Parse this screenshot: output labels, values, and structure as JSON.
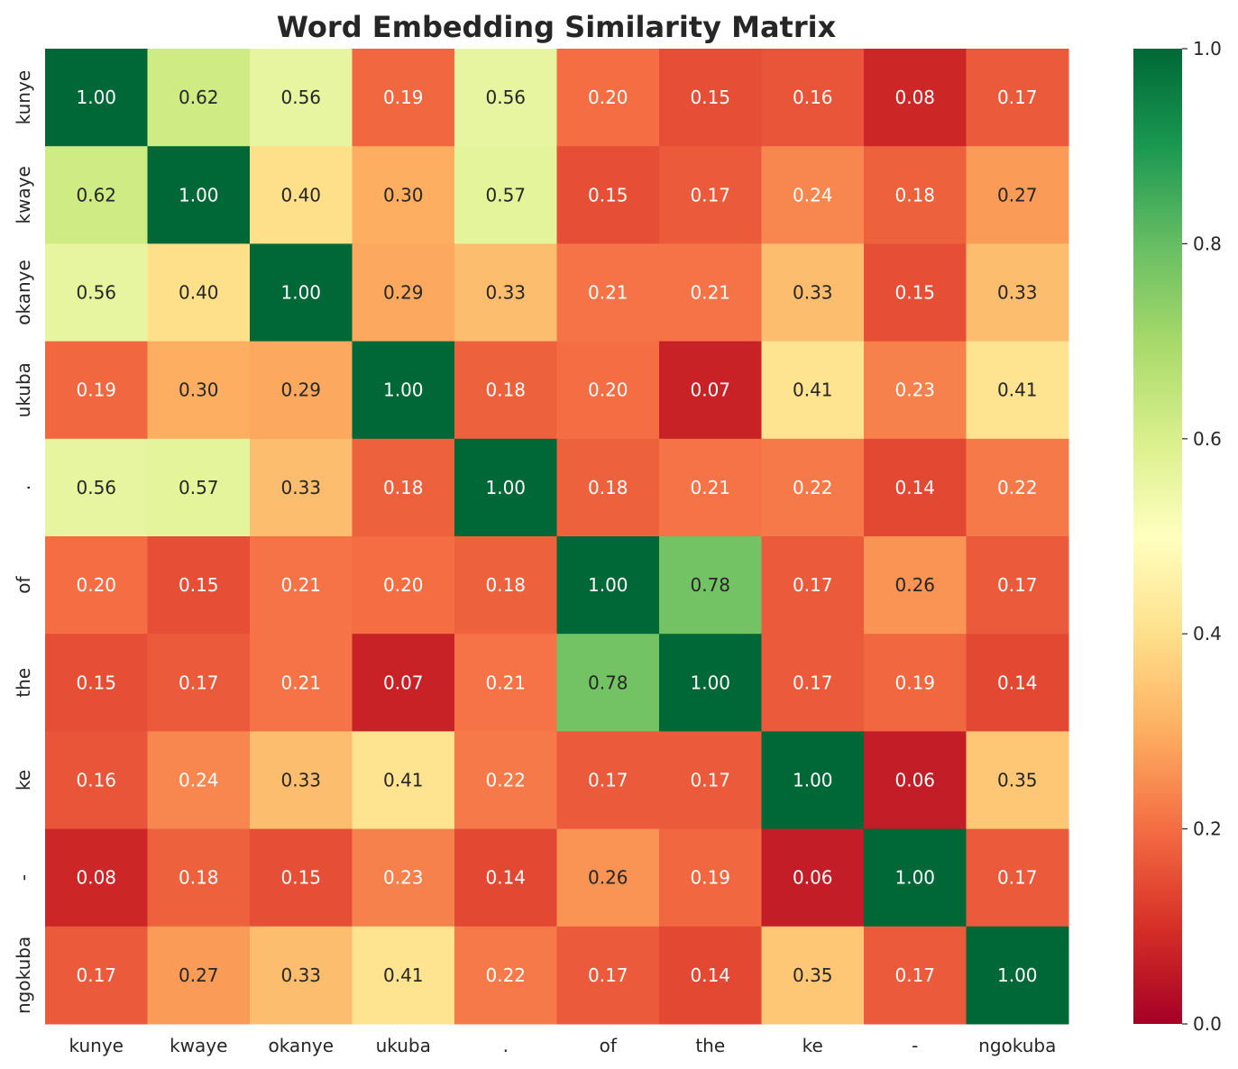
{
  "chart_data": {
    "type": "heatmap",
    "title": "Word Embedding Similarity Matrix",
    "x_labels": [
      "kunye",
      "kwaye",
      "okanye",
      "ukuba",
      ".",
      "of",
      "the",
      "ke",
      "-",
      "ngokuba"
    ],
    "y_labels": [
      "kunye",
      "kwaye",
      "okanye",
      "ukuba",
      ".",
      "of",
      "the",
      "ke",
      "-",
      "ngokuba"
    ],
    "values": [
      [
        1.0,
        0.62,
        0.56,
        0.19,
        0.56,
        0.2,
        0.15,
        0.16,
        0.08,
        0.17
      ],
      [
        0.62,
        1.0,
        0.4,
        0.3,
        0.57,
        0.15,
        0.17,
        0.24,
        0.18,
        0.27
      ],
      [
        0.56,
        0.4,
        1.0,
        0.29,
        0.33,
        0.21,
        0.21,
        0.33,
        0.15,
        0.33
      ],
      [
        0.19,
        0.3,
        0.29,
        1.0,
        0.18,
        0.2,
        0.07,
        0.41,
        0.23,
        0.41
      ],
      [
        0.56,
        0.57,
        0.33,
        0.18,
        1.0,
        0.18,
        0.21,
        0.22,
        0.14,
        0.22
      ],
      [
        0.2,
        0.15,
        0.21,
        0.2,
        0.18,
        1.0,
        0.78,
        0.17,
        0.26,
        0.17
      ],
      [
        0.15,
        0.17,
        0.21,
        0.07,
        0.21,
        0.78,
        1.0,
        0.17,
        0.19,
        0.14
      ],
      [
        0.16,
        0.24,
        0.33,
        0.41,
        0.22,
        0.17,
        0.17,
        1.0,
        0.06,
        0.35
      ],
      [
        0.08,
        0.18,
        0.15,
        0.23,
        0.14,
        0.26,
        0.19,
        0.06,
        1.0,
        0.17
      ],
      [
        0.17,
        0.27,
        0.33,
        0.41,
        0.22,
        0.17,
        0.14,
        0.35,
        0.17,
        1.0
      ]
    ],
    "colormap": "RdYlGn",
    "vmin": 0.0,
    "vmax": 1.0,
    "annotation_format": "0.00",
    "colorbar": {
      "ticks": [
        0.0,
        0.2,
        0.4,
        0.6,
        0.8,
        1.0
      ],
      "tick_labels": [
        "0.0",
        "0.2",
        "0.4",
        "0.6",
        "0.8",
        "1.0"
      ]
    },
    "text_color_dark": "#262626",
    "text_color_light": "#ffffff"
  }
}
